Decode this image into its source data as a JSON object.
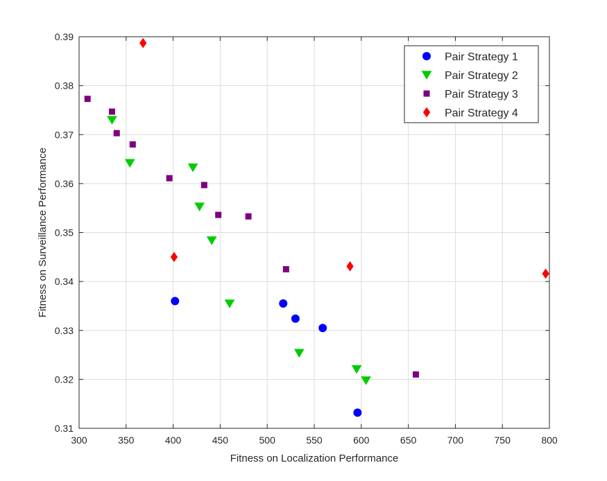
{
  "chart_data": {
    "type": "scatter",
    "title": "",
    "xlabel": "Fitness on Localization Performance",
    "ylabel": "Fitness on Surveillance Performance",
    "xlim": [
      300,
      800
    ],
    "ylim": [
      0.31,
      0.39
    ],
    "x_ticks": [
      300,
      350,
      400,
      450,
      500,
      550,
      600,
      650,
      700,
      750,
      800
    ],
    "y_ticks": [
      0.31,
      0.32,
      0.33,
      0.34,
      0.35,
      0.36,
      0.37,
      0.38,
      0.39
    ],
    "grid": true,
    "legend_position": "top-right",
    "series": [
      {
        "name": "Pair Strategy 1",
        "marker": "circle",
        "color": "#0000ff",
        "points": [
          [
            402,
            0.336
          ],
          [
            517,
            0.3355
          ],
          [
            530,
            0.3324
          ],
          [
            559,
            0.3305
          ],
          [
            596,
            0.3132
          ]
        ]
      },
      {
        "name": "Pair Strategy 2",
        "marker": "triangle-down",
        "color": "#00cc00",
        "points": [
          [
            335,
            0.373
          ],
          [
            354,
            0.3642
          ],
          [
            421,
            0.3633
          ],
          [
            428,
            0.3553
          ],
          [
            441,
            0.3484
          ],
          [
            460,
            0.3355
          ],
          [
            534,
            0.3254
          ],
          [
            595,
            0.3221
          ],
          [
            605,
            0.3198
          ]
        ]
      },
      {
        "name": "Pair Strategy 3",
        "marker": "square",
        "color": "#7e007e",
        "points": [
          [
            309,
            0.3773
          ],
          [
            335,
            0.3747
          ],
          [
            340,
            0.3703
          ],
          [
            357,
            0.368
          ],
          [
            396,
            0.3611
          ],
          [
            433,
            0.3597
          ],
          [
            448,
            0.3536
          ],
          [
            480,
            0.3533
          ],
          [
            520,
            0.3425
          ],
          [
            658,
            0.321
          ]
        ]
      },
      {
        "name": "Pair Strategy 4",
        "marker": "diamond",
        "color": "#ff0000",
        "points": [
          [
            368,
            0.3887
          ],
          [
            401,
            0.345
          ],
          [
            588,
            0.3431
          ],
          [
            796,
            0.3416
          ]
        ]
      }
    ]
  }
}
